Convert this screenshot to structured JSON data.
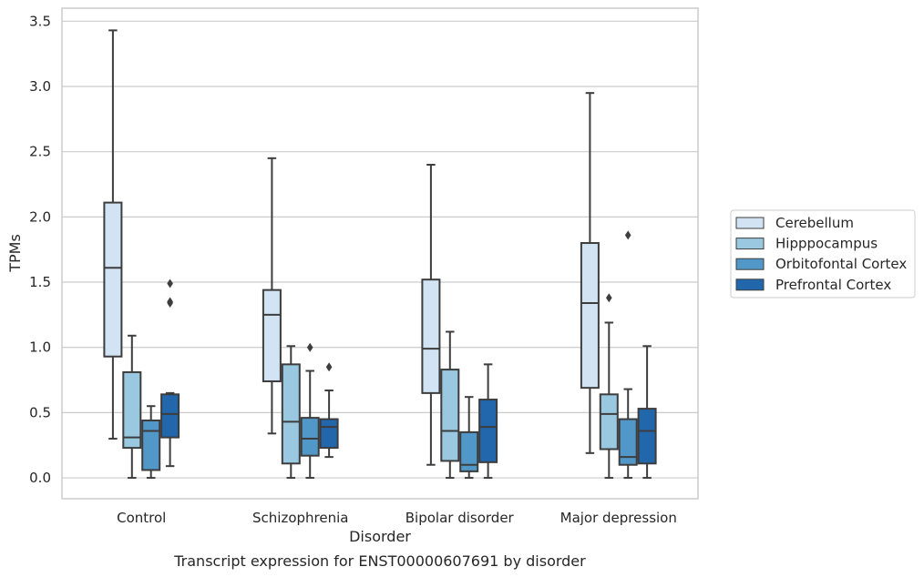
{
  "chart_data": {
    "type": "box",
    "caption": "Transcript expression for ENST00000607691 by disorder",
    "xlabel": "Disorder",
    "ylabel": "TPMs",
    "ylim": [
      -0.16,
      3.6
    ],
    "yticks": [
      "0.0",
      "0.5",
      "1.0",
      "1.5",
      "2.0",
      "2.5",
      "3.0",
      "3.5"
    ],
    "grid": true,
    "legend_position": "right",
    "categories": [
      "Control",
      "Schizophrenia",
      "Bipolar disorder",
      "Major depression"
    ],
    "series": [
      {
        "name": "Cerebellum",
        "color": "#d2e3f3",
        "boxes": [
          {
            "low": 0.3,
            "q1": 0.93,
            "median": 1.61,
            "q3": 2.11,
            "high": 3.43,
            "outliers": []
          },
          {
            "low": 0.34,
            "q1": 0.74,
            "median": 1.25,
            "q3": 1.44,
            "high": 2.45,
            "outliers": []
          },
          {
            "low": 0.1,
            "q1": 0.65,
            "median": 0.99,
            "q3": 1.52,
            "high": 2.4,
            "outliers": []
          },
          {
            "low": 0.19,
            "q1": 0.69,
            "median": 1.34,
            "q3": 1.8,
            "high": 2.95,
            "outliers": []
          }
        ]
      },
      {
        "name": "Hipppocampus",
        "color": "#9ac8e0",
        "boxes": [
          {
            "low": 0.0,
            "q1": 0.23,
            "median": 0.31,
            "q3": 0.81,
            "high": 1.09,
            "outliers": []
          },
          {
            "low": 0.0,
            "q1": 0.11,
            "median": 0.43,
            "q3": 0.87,
            "high": 1.01,
            "outliers": []
          },
          {
            "low": 0.0,
            "q1": 0.13,
            "median": 0.36,
            "q3": 0.83,
            "high": 1.12,
            "outliers": []
          },
          {
            "low": 0.0,
            "q1": 0.22,
            "median": 0.49,
            "q3": 0.64,
            "high": 1.19,
            "outliers": [
              1.38
            ]
          }
        ]
      },
      {
        "name": "Orbitofontal Cortex",
        "color": "#5198c8",
        "boxes": [
          {
            "low": 0.0,
            "q1": 0.06,
            "median": 0.36,
            "q3": 0.44,
            "high": 0.55,
            "outliers": []
          },
          {
            "low": 0.0,
            "q1": 0.17,
            "median": 0.3,
            "q3": 0.46,
            "high": 0.82,
            "outliers": [
              1.0
            ]
          },
          {
            "low": 0.0,
            "q1": 0.05,
            "median": 0.1,
            "q3": 0.35,
            "high": 0.62,
            "outliers": []
          },
          {
            "low": 0.0,
            "q1": 0.1,
            "median": 0.16,
            "q3": 0.45,
            "high": 0.68,
            "outliers": [
              1.86
            ]
          }
        ]
      },
      {
        "name": "Prefrontal Cortex",
        "color": "#2266ac",
        "boxes": [
          {
            "low": 0.09,
            "q1": 0.31,
            "median": 0.49,
            "q3": 0.64,
            "high": 0.65,
            "outliers": [
              1.34,
              1.35,
              1.49
            ]
          },
          {
            "low": 0.16,
            "q1": 0.23,
            "median": 0.39,
            "q3": 0.45,
            "high": 0.67,
            "outliers": [
              0.85
            ]
          },
          {
            "low": 0.0,
            "q1": 0.12,
            "median": 0.39,
            "q3": 0.6,
            "high": 0.87,
            "outliers": []
          },
          {
            "low": 0.0,
            "q1": 0.11,
            "median": 0.36,
            "q3": 0.53,
            "high": 1.01,
            "outliers": []
          }
        ]
      }
    ]
  }
}
